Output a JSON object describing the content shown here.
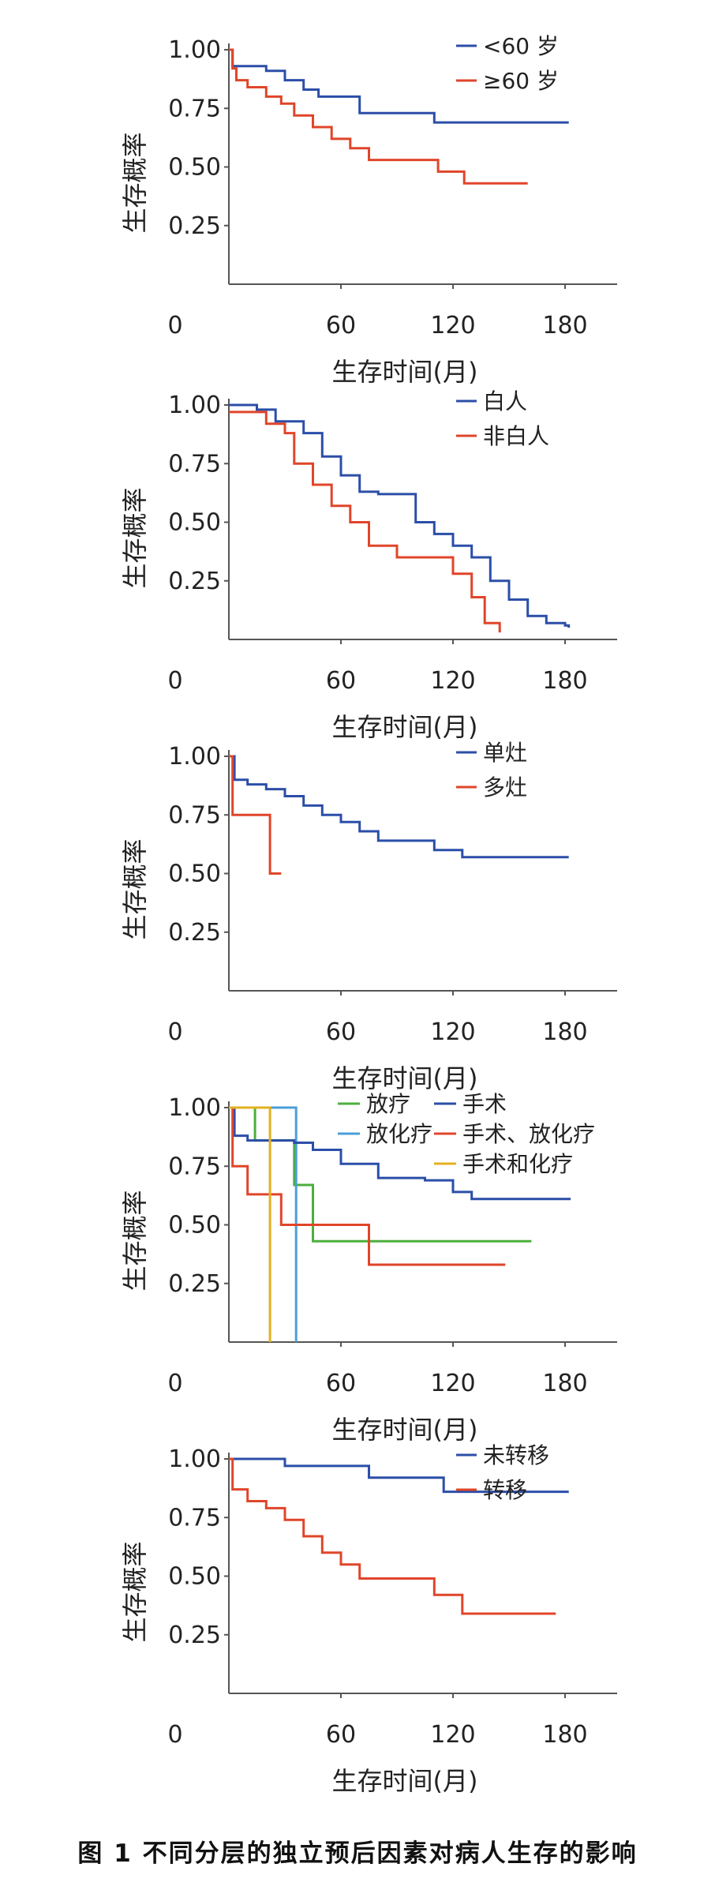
{
  "figure": {
    "caption": "图 1  不同分层的独立预后因素对病人生存的影响"
  },
  "colors": {
    "blue": "#2b4ea8",
    "red": "#e0452a",
    "green": "#4caf3c",
    "lightblue": "#4a9fd8",
    "yellow": "#e3b11f",
    "axis": "#555555"
  },
  "chart_data": [
    {
      "type": "line",
      "xlabel": "生存时间(月)",
      "ylabel": "生存概率",
      "xlim": [
        0,
        210
      ],
      "ylim": [
        0,
        1.0
      ],
      "xticks": [
        60,
        120,
        180
      ],
      "yticks": [
        1.0,
        0.75,
        0.5,
        0.25
      ],
      "tick_labels_y": [
        "1.00",
        "0.75",
        "0.50",
        "0.25"
      ],
      "origin_label": "0",
      "legend": "top-right",
      "series": [
        {
          "name": "<60 岁",
          "color": "blue",
          "points": [
            [
              0,
              1.0
            ],
            [
              2,
              0.93
            ],
            [
              20,
              0.91
            ],
            [
              30,
              0.87
            ],
            [
              40,
              0.83
            ],
            [
              48,
              0.8
            ],
            [
              70,
              0.73
            ],
            [
              100,
              0.73
            ],
            [
              110,
              0.69
            ],
            [
              182,
              0.69
            ]
          ]
        },
        {
          "name": "≥60 岁",
          "color": "red",
          "points": [
            [
              0,
              1.0
            ],
            [
              2,
              0.92
            ],
            [
              4,
              0.87
            ],
            [
              10,
              0.84
            ],
            [
              20,
              0.8
            ],
            [
              28,
              0.77
            ],
            [
              35,
              0.72
            ],
            [
              45,
              0.67
            ],
            [
              55,
              0.62
            ],
            [
              65,
              0.58
            ],
            [
              75,
              0.53
            ],
            [
              110,
              0.53
            ],
            [
              112,
              0.48
            ],
            [
              126,
              0.43
            ],
            [
              160,
              0.43
            ]
          ]
        }
      ]
    },
    {
      "type": "line",
      "xlabel": "生存时间(月)",
      "ylabel": "生存概率",
      "xlim": [
        0,
        210
      ],
      "ylim": [
        0,
        1.0
      ],
      "xticks": [
        60,
        120,
        180
      ],
      "yticks": [
        1.0,
        0.75,
        0.5,
        0.25
      ],
      "tick_labels_y": [
        "1.00",
        "0.75",
        "0.50",
        "0.25"
      ],
      "origin_label": "0",
      "legend": "top-right",
      "series": [
        {
          "name": "白人",
          "color": "blue",
          "points": [
            [
              0,
              1.0
            ],
            [
              15,
              0.98
            ],
            [
              25,
              0.93
            ],
            [
              40,
              0.88
            ],
            [
              50,
              0.78
            ],
            [
              60,
              0.7
            ],
            [
              70,
              0.63
            ],
            [
              80,
              0.62
            ],
            [
              100,
              0.5
            ],
            [
              110,
              0.45
            ],
            [
              120,
              0.4
            ],
            [
              130,
              0.35
            ],
            [
              140,
              0.25
            ],
            [
              150,
              0.17
            ],
            [
              160,
              0.1
            ],
            [
              170,
              0.07
            ],
            [
              180,
              0.06
            ],
            [
              182,
              0.05
            ]
          ]
        },
        {
          "name": "非白人",
          "color": "red",
          "points": [
            [
              0,
              0.97
            ],
            [
              20,
              0.92
            ],
            [
              30,
              0.88
            ],
            [
              35,
              0.75
            ],
            [
              45,
              0.66
            ],
            [
              55,
              0.57
            ],
            [
              65,
              0.5
            ],
            [
              75,
              0.4
            ],
            [
              90,
              0.35
            ],
            [
              110,
              0.35
            ],
            [
              120,
              0.28
            ],
            [
              130,
              0.18
            ],
            [
              137,
              0.07
            ],
            [
              145,
              0.03
            ]
          ]
        }
      ]
    },
    {
      "type": "line",
      "xlabel": "生存时间(月)",
      "ylabel": "生存概率",
      "xlim": [
        0,
        210
      ],
      "ylim": [
        0,
        1.0
      ],
      "xticks": [
        60,
        120,
        180
      ],
      "yticks": [
        1.0,
        0.75,
        0.5,
        0.25
      ],
      "tick_labels_y": [
        "1.00",
        "0.75",
        "0.50",
        "0.25"
      ],
      "origin_label": "0",
      "legend": "top-right",
      "series": [
        {
          "name": "单灶",
          "color": "blue",
          "points": [
            [
              0,
              1.0
            ],
            [
              3,
              0.9
            ],
            [
              10,
              0.88
            ],
            [
              20,
              0.86
            ],
            [
              30,
              0.83
            ],
            [
              40,
              0.79
            ],
            [
              50,
              0.75
            ],
            [
              60,
              0.72
            ],
            [
              70,
              0.68
            ],
            [
              80,
              0.64
            ],
            [
              100,
              0.64
            ],
            [
              110,
              0.6
            ],
            [
              125,
              0.57
            ],
            [
              182,
              0.57
            ]
          ]
        },
        {
          "name": "多灶",
          "color": "red",
          "points": [
            [
              0,
              1.0
            ],
            [
              2,
              0.75
            ],
            [
              22,
              0.75
            ],
            [
              22,
              0.5
            ],
            [
              28,
              0.5
            ]
          ]
        }
      ]
    },
    {
      "type": "line",
      "xlabel": "生存时间(月)",
      "ylabel": "生存概率",
      "xlim": [
        0,
        210
      ],
      "ylim": [
        0,
        1.0
      ],
      "xticks": [
        60,
        120,
        180
      ],
      "yticks": [
        1.0,
        0.75,
        0.5,
        0.25
      ],
      "tick_labels_y": [
        "1.00",
        "0.75",
        "0.50",
        "0.25"
      ],
      "origin_label": "0",
      "legend": "top-right",
      "series": [
        {
          "name": "放疗",
          "color": "green",
          "points": [
            [
              0,
              1.0
            ],
            [
              14,
              1.0
            ],
            [
              14,
              0.86
            ],
            [
              35,
              0.86
            ],
            [
              35,
              0.67
            ],
            [
              45,
              0.67
            ],
            [
              45,
              0.43
            ],
            [
              162,
              0.43
            ]
          ]
        },
        {
          "name": "放化疗",
          "color": "lightblue",
          "points": [
            [
              0,
              1.0
            ],
            [
              36,
              1.0
            ],
            [
              36,
              0.0
            ]
          ]
        },
        {
          "name": "手术",
          "color": "blue",
          "points": [
            [
              0,
              1.0
            ],
            [
              3,
              0.88
            ],
            [
              10,
              0.86
            ],
            [
              35,
              0.85
            ],
            [
              45,
              0.82
            ],
            [
              60,
              0.76
            ],
            [
              80,
              0.7
            ],
            [
              105,
              0.69
            ],
            [
              120,
              0.64
            ],
            [
              130,
              0.61
            ],
            [
              183,
              0.61
            ]
          ]
        },
        {
          "name": "手术、放化疗",
          "color": "red",
          "points": [
            [
              0,
              1.0
            ],
            [
              2,
              0.75
            ],
            [
              10,
              0.63
            ],
            [
              28,
              0.63
            ],
            [
              28,
              0.5
            ],
            [
              75,
              0.5
            ],
            [
              75,
              0.33
            ],
            [
              148,
              0.33
            ]
          ]
        },
        {
          "name": "手术和化疗",
          "color": "yellow",
          "points": [
            [
              0,
              1.0
            ],
            [
              22,
              1.0
            ],
            [
              22,
              0.0
            ]
          ]
        }
      ]
    },
    {
      "type": "line",
      "xlabel": "生存时间(月)",
      "ylabel": "生存概率",
      "xlim": [
        0,
        210
      ],
      "ylim": [
        0,
        1.0
      ],
      "xticks": [
        60,
        120,
        180
      ],
      "yticks": [
        1.0,
        0.75,
        0.5,
        0.25
      ],
      "tick_labels_y": [
        "1.00",
        "0.75",
        "0.50",
        "0.25"
      ],
      "origin_label": "0",
      "legend": "top-right",
      "series": [
        {
          "name": "未转移",
          "color": "blue",
          "points": [
            [
              0,
              1.0
            ],
            [
              30,
              0.97
            ],
            [
              75,
              0.92
            ],
            [
              115,
              0.86
            ],
            [
              182,
              0.86
            ]
          ]
        },
        {
          "name": "转移",
          "color": "red",
          "points": [
            [
              0,
              1.0
            ],
            [
              2,
              0.87
            ],
            [
              10,
              0.82
            ],
            [
              20,
              0.79
            ],
            [
              30,
              0.74
            ],
            [
              40,
              0.67
            ],
            [
              50,
              0.6
            ],
            [
              60,
              0.55
            ],
            [
              70,
              0.49
            ],
            [
              110,
              0.42
            ],
            [
              125,
              0.34
            ],
            [
              175,
              0.34
            ]
          ]
        }
      ]
    }
  ]
}
